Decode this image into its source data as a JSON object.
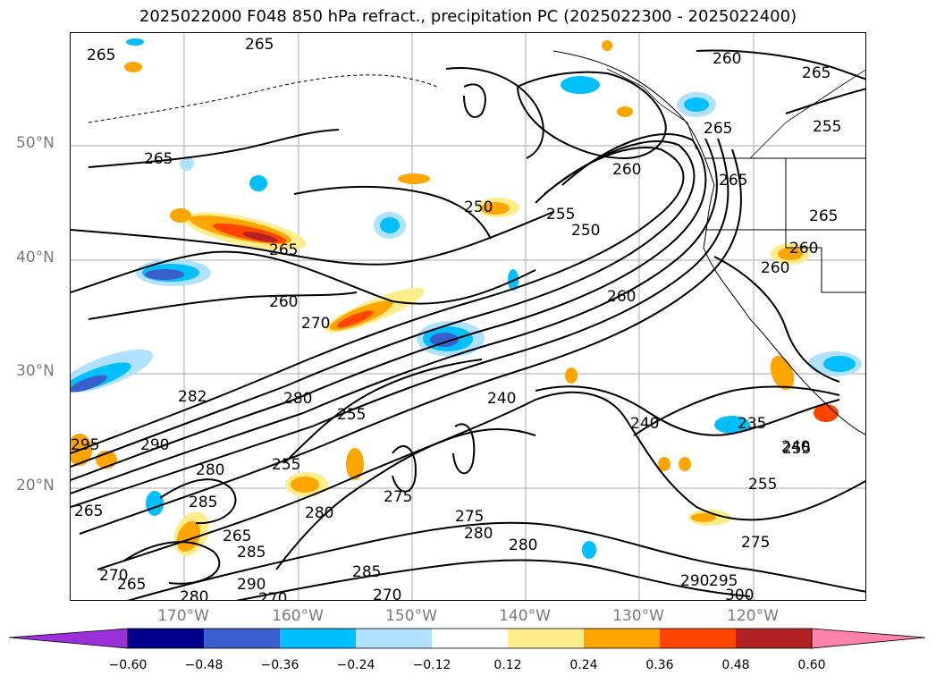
{
  "title": "2025022000 F048 850 hPa refract., precipitation PC (2025022300 - 2025022400)",
  "latitude_labels": [
    "50°N",
    "40°N",
    "30°N",
    "20°N"
  ],
  "longitude_labels": [
    "170°W",
    "160°W",
    "150°W",
    "140°W",
    "130°W",
    "120°W"
  ],
  "contour_labels": [
    "265",
    "265",
    "265",
    "265",
    "260",
    "265",
    "265",
    "255",
    "260",
    "255",
    "250",
    "265",
    "260",
    "265",
    "270",
    "260",
    "260",
    "250",
    "282",
    "280",
    "255",
    "240",
    "295",
    "290",
    "280",
    "265",
    "255",
    "285",
    "280",
    "275",
    "275",
    "270",
    "235",
    "240",
    "240",
    "255",
    "280",
    "265",
    "285",
    "280",
    "290",
    "285",
    "280",
    "290",
    "295",
    "270",
    "300",
    "275",
    "270",
    "265",
    "260",
    "255"
  ],
  "colorbar": {
    "tick_labels": [
      "−0.60",
      "−0.48",
      "−0.36",
      "−0.24",
      "−0.12",
      "0.12",
      "0.24",
      "0.36",
      "0.48",
      "0.60"
    ],
    "colors": [
      "#9b30d9",
      "#00008b",
      "#3a5fcd",
      "#00bfff",
      "#b0e2ff",
      "#ffffff",
      "#ffec8b",
      "#ffa500",
      "#ff4500",
      "#b22222",
      "#ff82ab"
    ]
  }
}
